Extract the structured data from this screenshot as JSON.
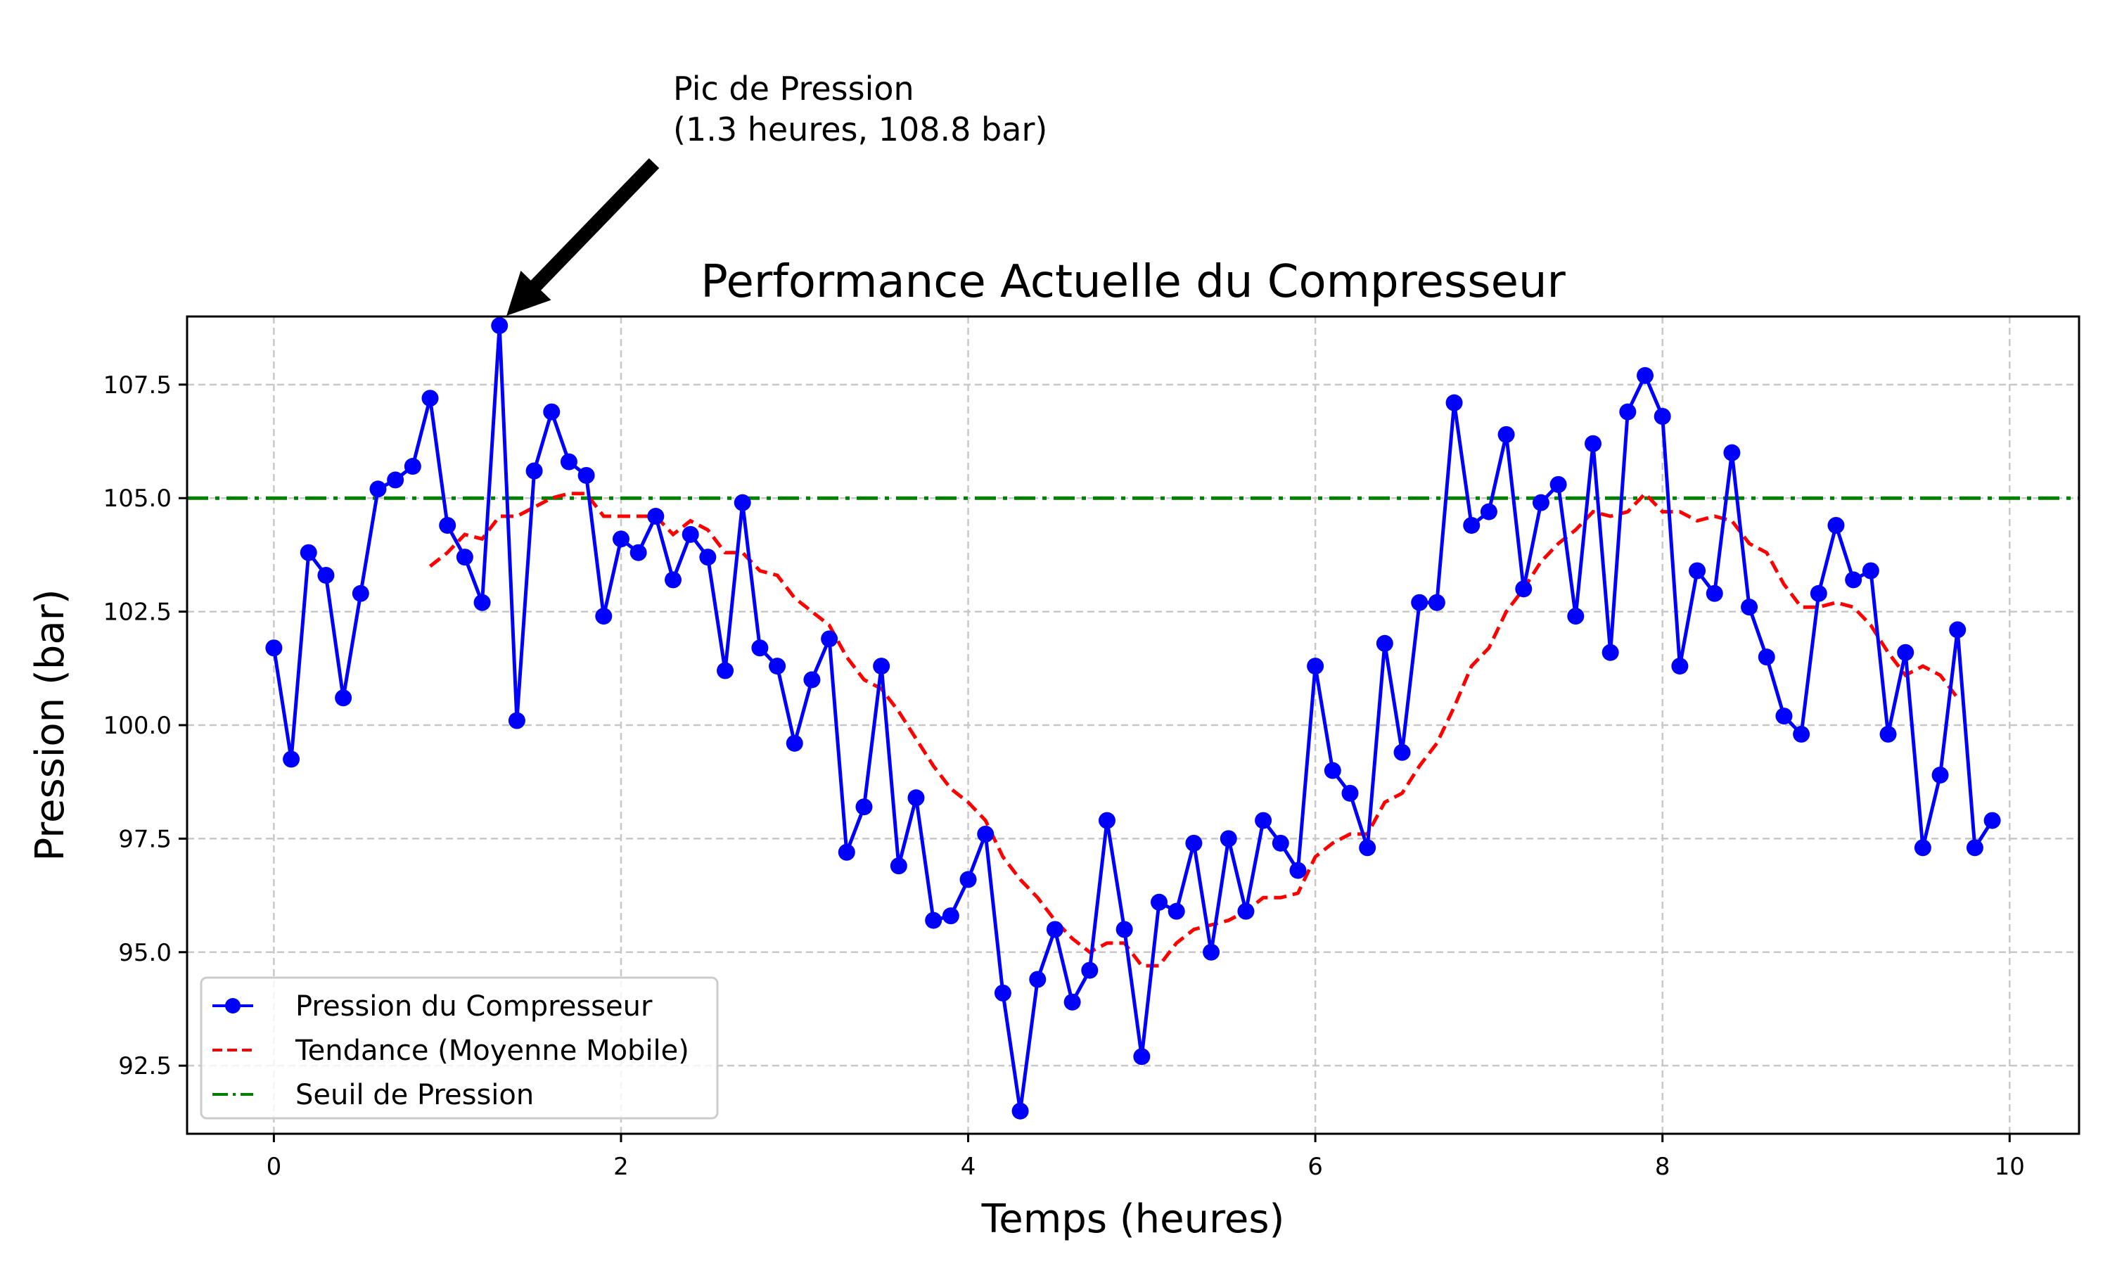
{
  "chart_data": {
    "type": "line",
    "title": "Performance Actuelle du Compresseur",
    "xlabel": "Temps (heures)",
    "ylabel": "Pression (bar)",
    "xlim": [
      -0.5,
      10.4
    ],
    "ylim": [
      91.0,
      109.0
    ],
    "xticks": [
      0,
      2,
      4,
      6,
      8,
      10
    ],
    "xtick_labels": [
      "0",
      "2",
      "4",
      "6",
      "8",
      "10"
    ],
    "yticks": [
      92.5,
      95.0,
      97.5,
      100.0,
      102.5,
      105.0,
      107.5
    ],
    "ytick_labels": [
      "92.5",
      "95.0",
      "97.5",
      "100.0",
      "102.5",
      "105.0",
      "107.5"
    ],
    "grid": true,
    "legend_position": "lower left",
    "x": [
      0.0,
      0.1,
      0.2,
      0.3,
      0.4,
      0.5,
      0.6,
      0.7,
      0.8,
      0.9,
      1.0,
      1.1,
      1.2,
      1.3,
      1.4,
      1.5,
      1.6,
      1.7,
      1.8,
      1.9,
      2.0,
      2.1,
      2.2,
      2.3,
      2.4,
      2.5,
      2.6,
      2.7,
      2.8,
      2.9,
      3.0,
      3.1,
      3.2,
      3.3,
      3.4,
      3.5,
      3.6,
      3.7,
      3.8,
      3.9,
      4.0,
      4.1,
      4.2,
      4.3,
      4.4,
      4.5,
      4.6,
      4.7,
      4.8,
      4.9,
      5.0,
      5.1,
      5.2,
      5.3,
      5.4,
      5.5,
      5.6,
      5.7,
      5.8,
      5.9,
      6.0,
      6.1,
      6.2,
      6.3,
      6.4,
      6.5,
      6.6,
      6.7,
      6.8,
      6.9,
      7.0,
      7.1,
      7.2,
      7.3,
      7.4,
      7.5,
      7.6,
      7.7,
      7.8,
      7.9,
      8.0,
      8.1,
      8.2,
      8.3,
      8.4,
      8.5,
      8.6,
      8.7,
      8.8,
      8.9,
      9.0,
      9.1,
      9.2,
      9.3,
      9.4,
      9.5,
      9.6,
      9.7,
      9.8,
      9.9
    ],
    "series": [
      {
        "name": "Pression du Compresseur",
        "color": "#0000ff",
        "style": "solid-with-markers",
        "values": [
          101.7,
          99.25,
          103.8,
          103.3,
          100.6,
          102.9,
          105.2,
          105.4,
          105.7,
          107.2,
          104.4,
          103.7,
          102.7,
          108.8,
          100.1,
          105.6,
          106.9,
          105.8,
          105.5,
          102.4,
          104.1,
          103.8,
          104.6,
          103.2,
          104.2,
          103.7,
          101.2,
          104.9,
          101.7,
          101.3,
          99.6,
          101.0,
          101.9,
          97.2,
          98.2,
          101.3,
          96.9,
          98.4,
          95.7,
          95.8,
          96.6,
          97.6,
          94.1,
          91.5,
          94.4,
          95.5,
          93.9,
          94.6,
          97.9,
          95.5,
          92.7,
          96.1,
          95.9,
          97.4,
          95.0,
          97.5,
          95.9,
          97.9,
          97.4,
          96.8,
          101.3,
          99.0,
          98.5,
          97.3,
          101.8,
          99.4,
          102.7,
          102.7,
          107.1,
          104.4,
          104.7,
          106.4,
          103.0,
          104.9,
          105.3,
          102.4,
          106.2,
          101.6,
          106.9,
          107.7,
          106.8,
          101.3,
          103.4,
          102.9,
          106.0,
          102.6,
          101.5,
          100.2,
          99.8,
          102.9,
          104.4,
          103.2,
          103.4,
          99.8,
          101.6,
          97.3,
          98.9,
          102.1,
          97.3,
          97.9
        ]
      },
      {
        "name": "Tendance (Moyenne Mobile)",
        "color": "#ff0000",
        "style": "dashed",
        "x_start": 0.9,
        "values": [
          103.5,
          103.8,
          104.2,
          104.1,
          104.6,
          104.6,
          104.8,
          105.0,
          105.1,
          105.1,
          104.6,
          104.6,
          104.6,
          104.6,
          104.2,
          104.5,
          104.3,
          103.8,
          103.8,
          103.4,
          103.3,
          102.8,
          102.5,
          102.2,
          101.5,
          101.0,
          100.8,
          100.3,
          99.7,
          99.1,
          98.6,
          98.3,
          97.9,
          97.1,
          96.6,
          96.2,
          95.7,
          95.3,
          95.0,
          95.2,
          95.2,
          94.7,
          94.7,
          95.2,
          95.5,
          95.6,
          95.7,
          95.9,
          96.2,
          96.2,
          96.3,
          97.1,
          97.4,
          97.6,
          97.6,
          98.3,
          98.5,
          99.1,
          99.6,
          100.4,
          101.3,
          101.7,
          102.5,
          103.0,
          103.6,
          104.0,
          104.3,
          104.7,
          104.6,
          104.7,
          105.1,
          104.7,
          104.7,
          104.5,
          104.6,
          104.5,
          104.0,
          103.8,
          103.1,
          102.6,
          102.6,
          102.7,
          102.6,
          102.2,
          101.6,
          101.1,
          101.3,
          101.1,
          100.6
        ]
      },
      {
        "name": "Seuil de Pression",
        "color": "#008000",
        "style": "dashdot",
        "value": 105.0
      }
    ],
    "annotations": [
      {
        "text_line1": "Pic de Pression",
        "text_line2": "(1.3 heures, 108.8 bar)",
        "point": [
          1.3,
          108.8
        ],
        "arrow": true
      }
    ]
  },
  "legend": {
    "items": [
      {
        "label": "Pression du Compresseur"
      },
      {
        "label": "Tendance (Moyenne Mobile)"
      },
      {
        "label": "Seuil de Pression"
      }
    ]
  }
}
